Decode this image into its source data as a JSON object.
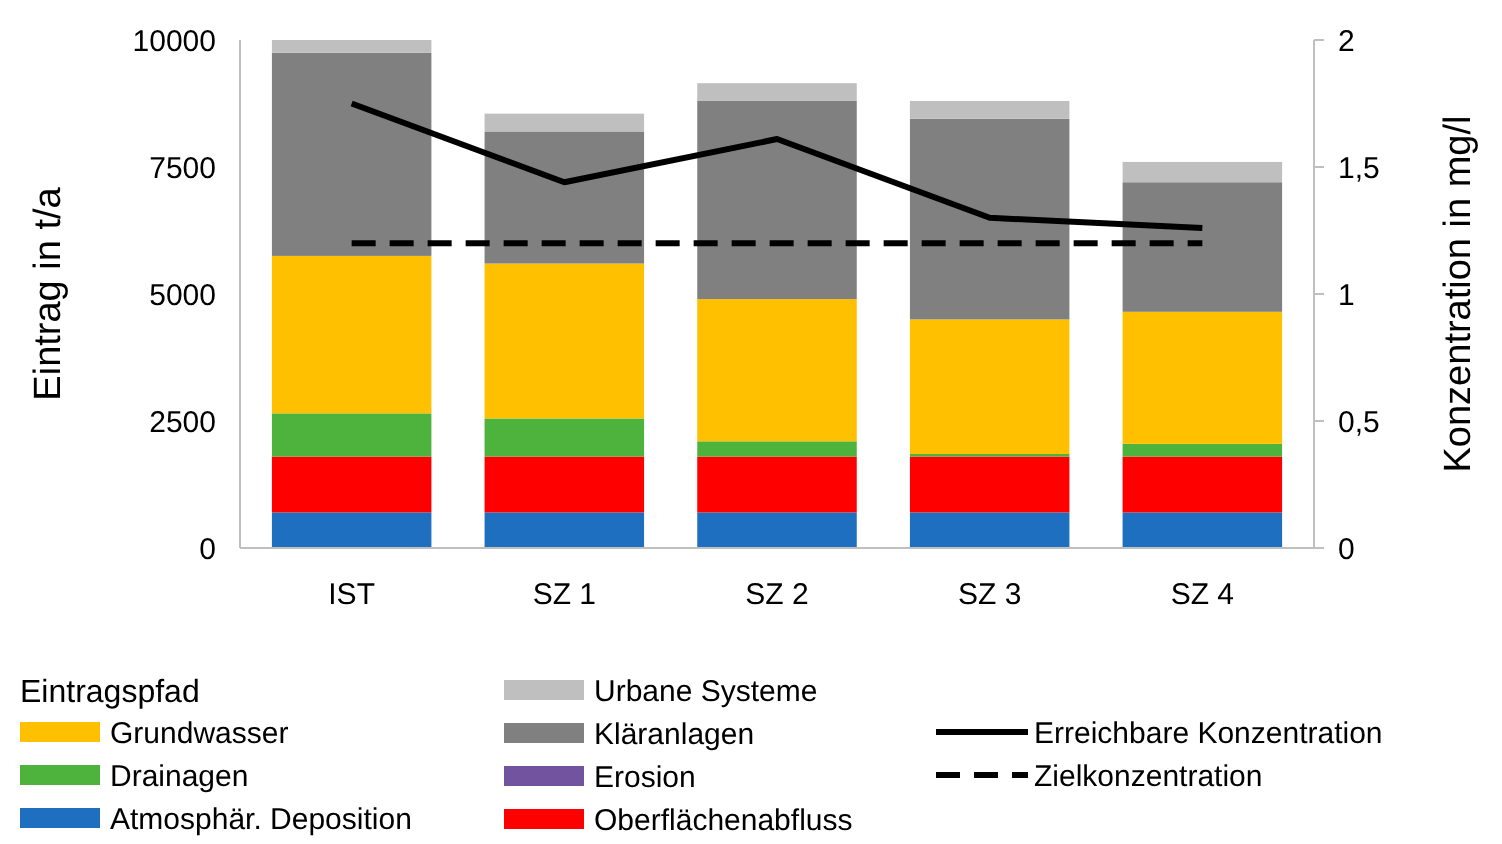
{
  "chart_data": {
    "type": "bar",
    "stacked": true,
    "categories": [
      "IST",
      "SZ 1",
      "SZ 2",
      "SZ 3",
      "SZ 4"
    ],
    "ylabel": "Eintrag in t/a",
    "y2label": "Konzentration in mg/l",
    "legend_title": "Eintragspfad",
    "legend": "bottom",
    "ylim": [
      0,
      10000
    ],
    "yticks": [
      0,
      2500,
      5000,
      7500,
      10000
    ],
    "y2lim": [
      0,
      2
    ],
    "y2ticks": [
      0,
      {
        "value": 0.5,
        "label": "0,5"
      },
      1,
      {
        "value": 1.5,
        "label": "1,5"
      },
      2
    ],
    "series": [
      {
        "name": "Atmosphär. Deposition",
        "color": "#1f6fc0",
        "values": [
          700,
          700,
          700,
          700,
          700
        ]
      },
      {
        "name": "Oberflächenabfluss",
        "color": "#ff0000",
        "values": [
          1100,
          1100,
          1100,
          1100,
          1100
        ]
      },
      {
        "name": "Erosion",
        "color": "#7153a0",
        "values": [
          0,
          0,
          0,
          0,
          0
        ]
      },
      {
        "name": "Drainagen",
        "color": "#4eb33d",
        "values": [
          850,
          750,
          300,
          50,
          250
        ]
      },
      {
        "name": "Grundwasser",
        "color": "#ffc000",
        "values": [
          3100,
          3050,
          2800,
          2650,
          2600
        ]
      },
      {
        "name": "Kläranlagen",
        "color": "#808080",
        "values": [
          4000,
          2600,
          3900,
          3950,
          2550
        ]
      },
      {
        "name": "Urbane Systeme",
        "color": "#bfbfbf",
        "values": [
          250,
          350,
          350,
          350,
          400
        ]
      },
      {
        "name": "Erreichbare Konzentration",
        "type": "line",
        "axis": "y2",
        "color": "#000000",
        "line_style": "solid",
        "marker": "none",
        "values": [
          1.75,
          1.44,
          1.61,
          1.3,
          1.26
        ]
      },
      {
        "name": "Zielkonzentration",
        "type": "line",
        "axis": "y2",
        "color": "#000000",
        "line_style": "dashed",
        "marker": "none",
        "values": [
          1.2,
          1.2,
          1.2,
          1.2,
          1.2
        ]
      }
    ]
  }
}
